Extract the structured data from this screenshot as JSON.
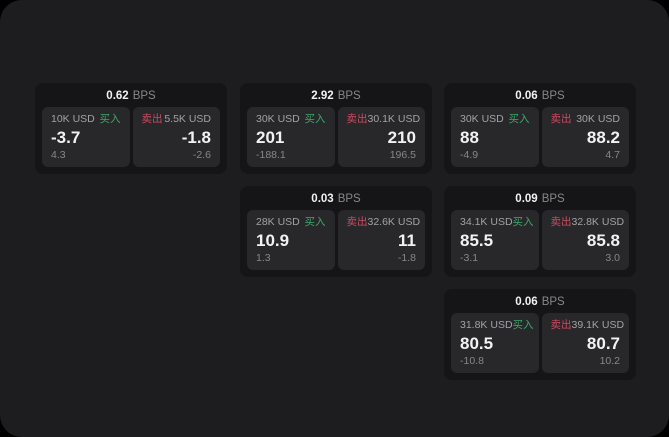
{
  "labels": {
    "bps_suffix": "BPS",
    "buy": "买入",
    "sell": "卖出"
  },
  "colors": {
    "outer_bg": "#000000",
    "panel_bg": "#1d1d1f",
    "card_bg": "#151517",
    "tile_bg": "#28282a",
    "buy_green": "#3fa66b",
    "sell_red": "#cc4a63",
    "text_primary": "#f2f2f2",
    "text_secondary": "#a2a2a6",
    "text_muted": "#87878b"
  },
  "cards": [
    {
      "row": 1,
      "col": 1,
      "bps": "0.62",
      "buy": {
        "size": "10K USD",
        "value": "-3.7",
        "delta": "4.3"
      },
      "sell": {
        "size": "5.5K USD",
        "value": "-1.8",
        "delta": "-2.6"
      }
    },
    {
      "row": 1,
      "col": 2,
      "bps": "2.92",
      "buy": {
        "size": "30K USD",
        "value": "201",
        "delta": "-188.1"
      },
      "sell": {
        "size": "30.1K USD",
        "value": "210",
        "delta": "196.5"
      }
    },
    {
      "row": 1,
      "col": 3,
      "bps": "0.06",
      "buy": {
        "size": "30K USD",
        "value": "88",
        "delta": "-4.9"
      },
      "sell": {
        "size": "30K USD",
        "value": "88.2",
        "delta": "4.7"
      }
    },
    {
      "row": 2,
      "col": 2,
      "bps": "0.03",
      "buy": {
        "size": "28K USD",
        "value": "10.9",
        "delta": "1.3"
      },
      "sell": {
        "size": "32.6K USD",
        "value": "11",
        "delta": "-1.8"
      }
    },
    {
      "row": 2,
      "col": 3,
      "bps": "0.09",
      "buy": {
        "size": "34.1K USD",
        "value": "85.5",
        "delta": "-3.1"
      },
      "sell": {
        "size": "32.8K USD",
        "value": "85.8",
        "delta": "3.0"
      }
    },
    {
      "row": 3,
      "col": 3,
      "bps": "0.06",
      "buy": {
        "size": "31.8K USD",
        "value": "80.5",
        "delta": "-10.8"
      },
      "sell": {
        "size": "39.1K USD",
        "value": "80.7",
        "delta": "10.2"
      }
    }
  ]
}
